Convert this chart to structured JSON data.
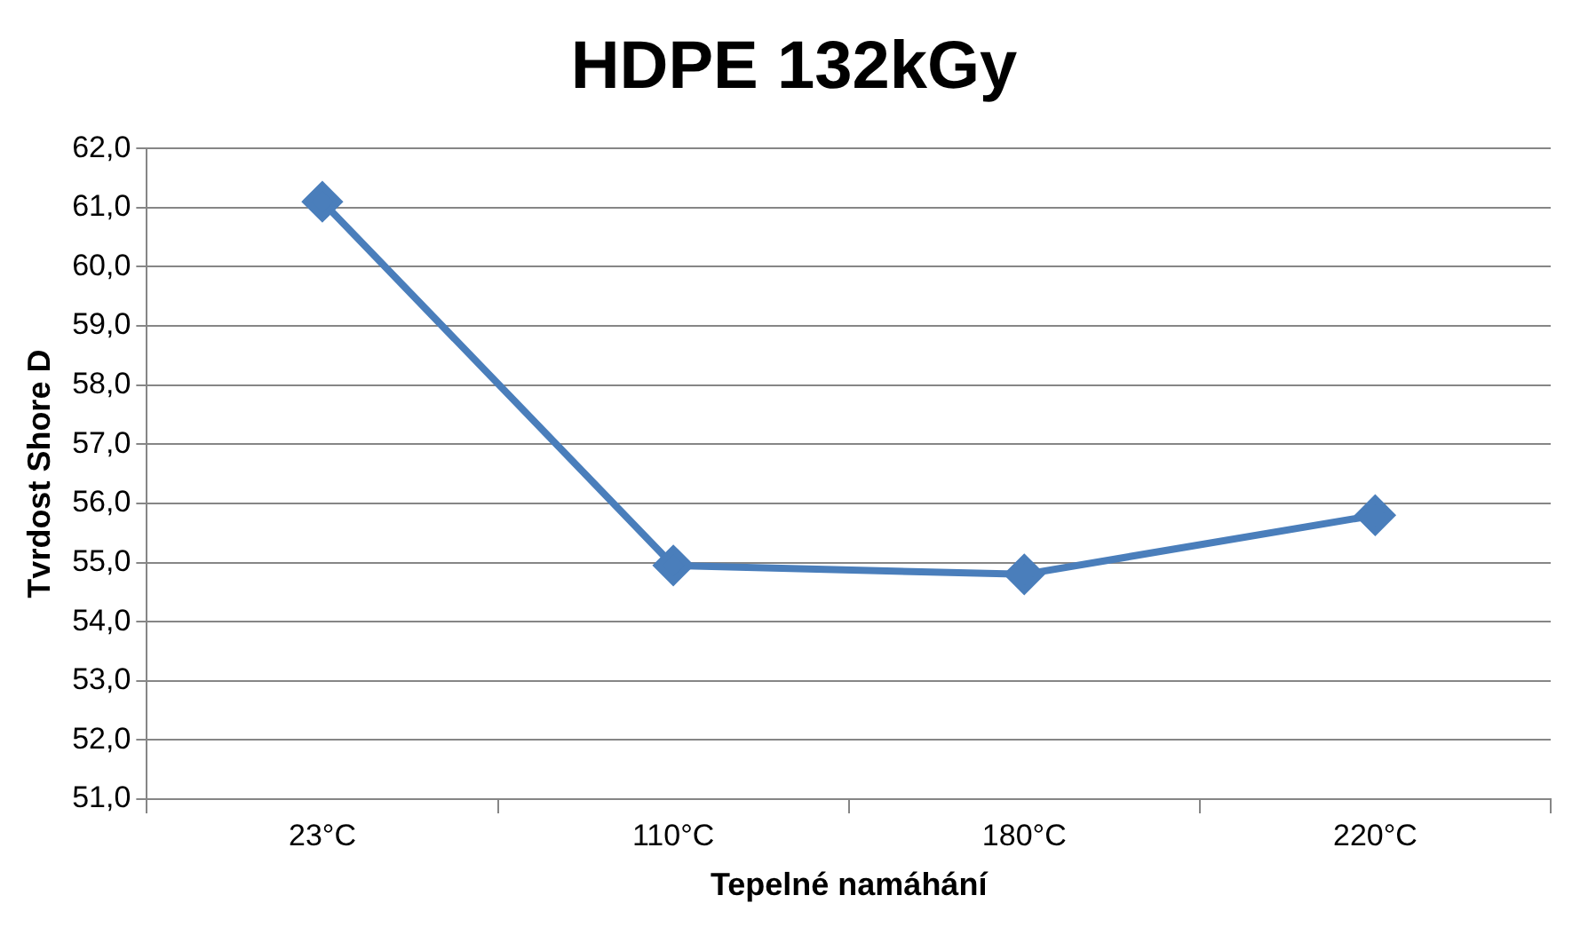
{
  "chart_data": {
    "type": "line",
    "title": "HDPE 132kGy",
    "xlabel": "Tepelné namáhání",
    "ylabel": "Tvrdost Shore D",
    "categories": [
      "23°C",
      "110°C",
      "180°C",
      "220°C"
    ],
    "series": [
      {
        "color": "#4a7ebb",
        "values": [
          61.1,
          54.95,
          54.8,
          55.8
        ]
      }
    ],
    "ylim": [
      51,
      62
    ],
    "yticks": [
      {
        "value": 51,
        "label": "51,0"
      },
      {
        "value": 52,
        "label": "52,0"
      },
      {
        "value": 53,
        "label": "53,0"
      },
      {
        "value": 54,
        "label": "54,0"
      },
      {
        "value": 55,
        "label": "55,0"
      },
      {
        "value": 56,
        "label": "56,0"
      },
      {
        "value": 57,
        "label": "57,0"
      },
      {
        "value": 58,
        "label": "58,0"
      },
      {
        "value": 59,
        "label": "59,0"
      },
      {
        "value": 60,
        "label": "60,0"
      },
      {
        "value": 61,
        "label": "61,0"
      },
      {
        "value": 62,
        "label": "62,0"
      }
    ],
    "grid": "y",
    "legend": false,
    "marker": "diamond",
    "line_style": "solid"
  }
}
